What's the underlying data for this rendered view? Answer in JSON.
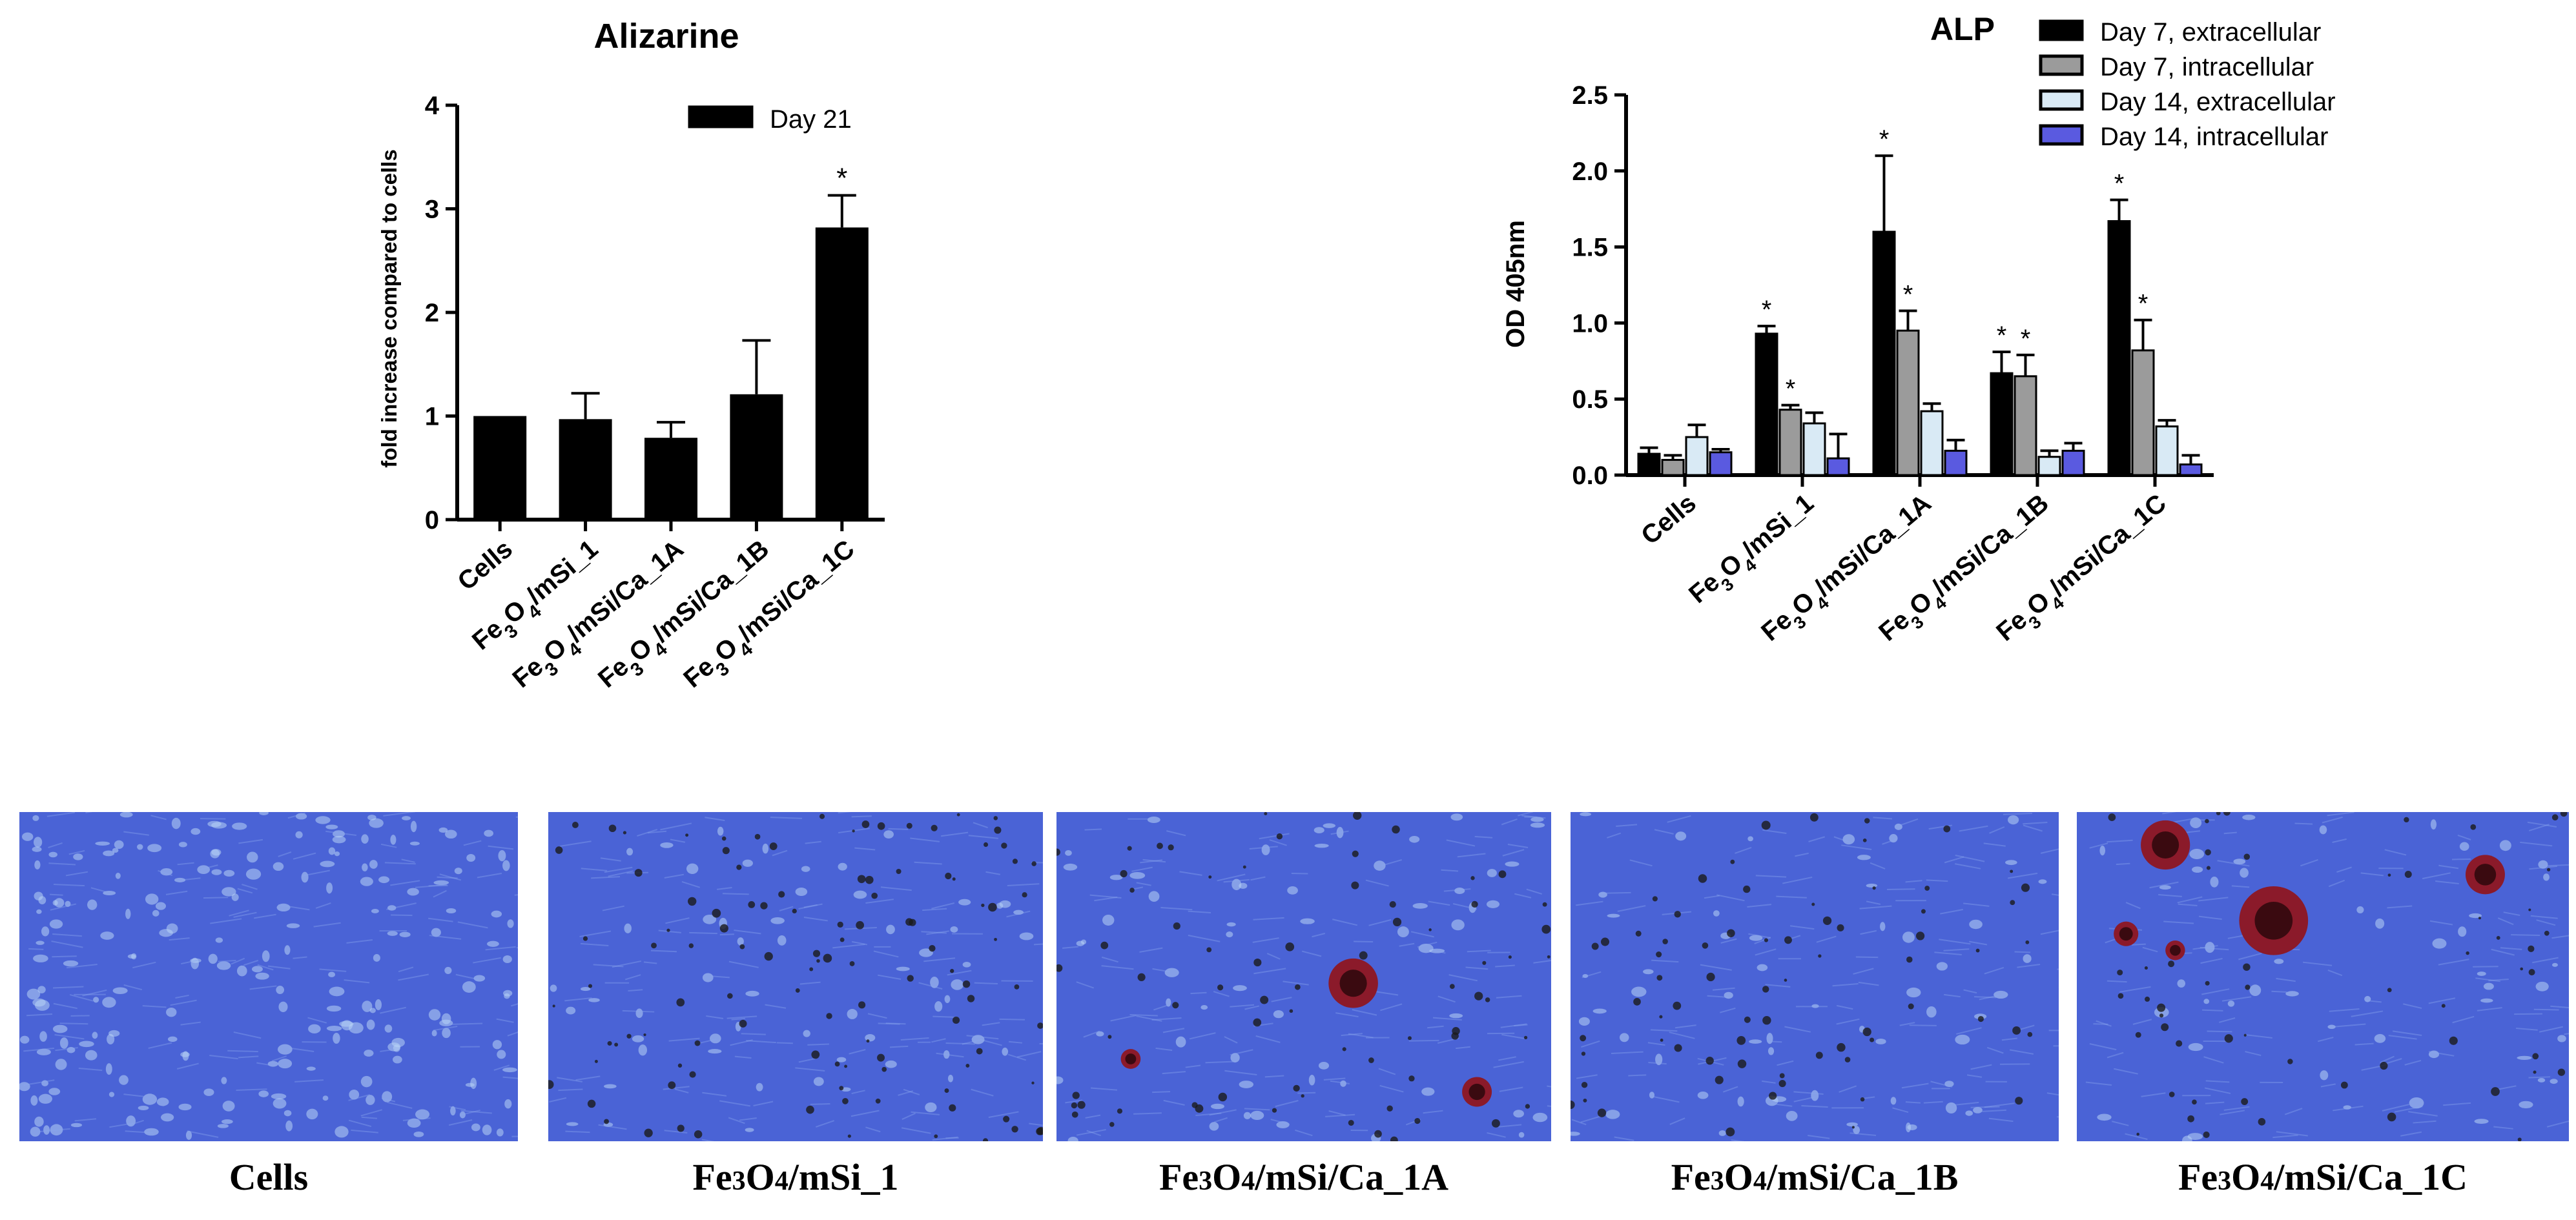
{
  "chart_data": [
    {
      "type": "bar",
      "title": "Alizarine",
      "ylabel": "fold increase compared to cells",
      "ylim": [
        0,
        4
      ],
      "yticks": [
        "0",
        "1",
        "2",
        "3",
        "4"
      ],
      "categories": [
        "Cells",
        "Fe3O4/mSi_1",
        "Fe3O4/mSi/Ca_1A",
        "Fe3O4/mSi/Ca_1B",
        "Fe3O4/mSi/Ca_1C"
      ],
      "series": [
        {
          "name": "Day 21",
          "color": "#000000",
          "values": [
            1.0,
            0.97,
            0.79,
            1.21,
            2.82
          ],
          "errors": [
            0.0,
            0.25,
            0.15,
            0.52,
            0.31
          ],
          "significant": [
            false,
            false,
            false,
            false,
            true
          ]
        }
      ],
      "legend": "top-right",
      "grid": false
    },
    {
      "type": "bar",
      "title": "ALP",
      "ylabel": "OD 405nm",
      "ylim": [
        0,
        2.5
      ],
      "yticks": [
        "0.0",
        "0.5",
        "1.0",
        "1.5",
        "2.0",
        "2.5"
      ],
      "categories": [
        "Cells",
        "Fe3O4/mSi_1",
        "Fe3O4/mSi/Ca_1A",
        "Fe3O4/mSi/Ca_1B",
        "Fe3O4/mSi/Ca_1C"
      ],
      "series": [
        {
          "name": "Day 7, extracellular",
          "color": "#000000",
          "values": [
            0.14,
            0.93,
            1.6,
            0.67,
            1.67
          ],
          "errors": [
            0.04,
            0.05,
            0.5,
            0.14,
            0.14
          ],
          "significant": [
            false,
            true,
            true,
            true,
            true
          ]
        },
        {
          "name": "Day 7, intracellular",
          "color": "#9b9b9b",
          "values": [
            0.1,
            0.43,
            0.95,
            0.65,
            0.82
          ],
          "errors": [
            0.03,
            0.03,
            0.13,
            0.14,
            0.2
          ],
          "significant": [
            false,
            true,
            true,
            true,
            true
          ]
        },
        {
          "name": "Day 14, extracellular",
          "color": "#d9eaf5",
          "values": [
            0.25,
            0.34,
            0.42,
            0.12,
            0.32
          ],
          "errors": [
            0.08,
            0.07,
            0.05,
            0.04,
            0.04
          ],
          "significant": [
            false,
            false,
            false,
            false,
            false
          ]
        },
        {
          "name": "Day 14, intracellular",
          "color": "#5a5ae0",
          "values": [
            0.15,
            0.11,
            0.16,
            0.16,
            0.07
          ],
          "errors": [
            0.02,
            0.16,
            0.07,
            0.05,
            0.06
          ],
          "significant": [
            false,
            false,
            false,
            false,
            false
          ]
        }
      ],
      "legend": "top-right",
      "grid": false
    }
  ],
  "significance_marker": "*",
  "micrographs": [
    {
      "caption": "Cells"
    },
    {
      "caption": "Fe3O4/mSi_1"
    },
    {
      "caption": "Fe3O4/mSi/Ca_1A"
    },
    {
      "caption": "Fe3O4/mSi/Ca_1B"
    },
    {
      "caption": "Fe3O4/mSi/Ca_1C"
    }
  ],
  "colors": {
    "stain_background": "#4a63d6",
    "nodule_red": "#8b1a2a",
    "black_deposit": "#1a1a1a"
  }
}
